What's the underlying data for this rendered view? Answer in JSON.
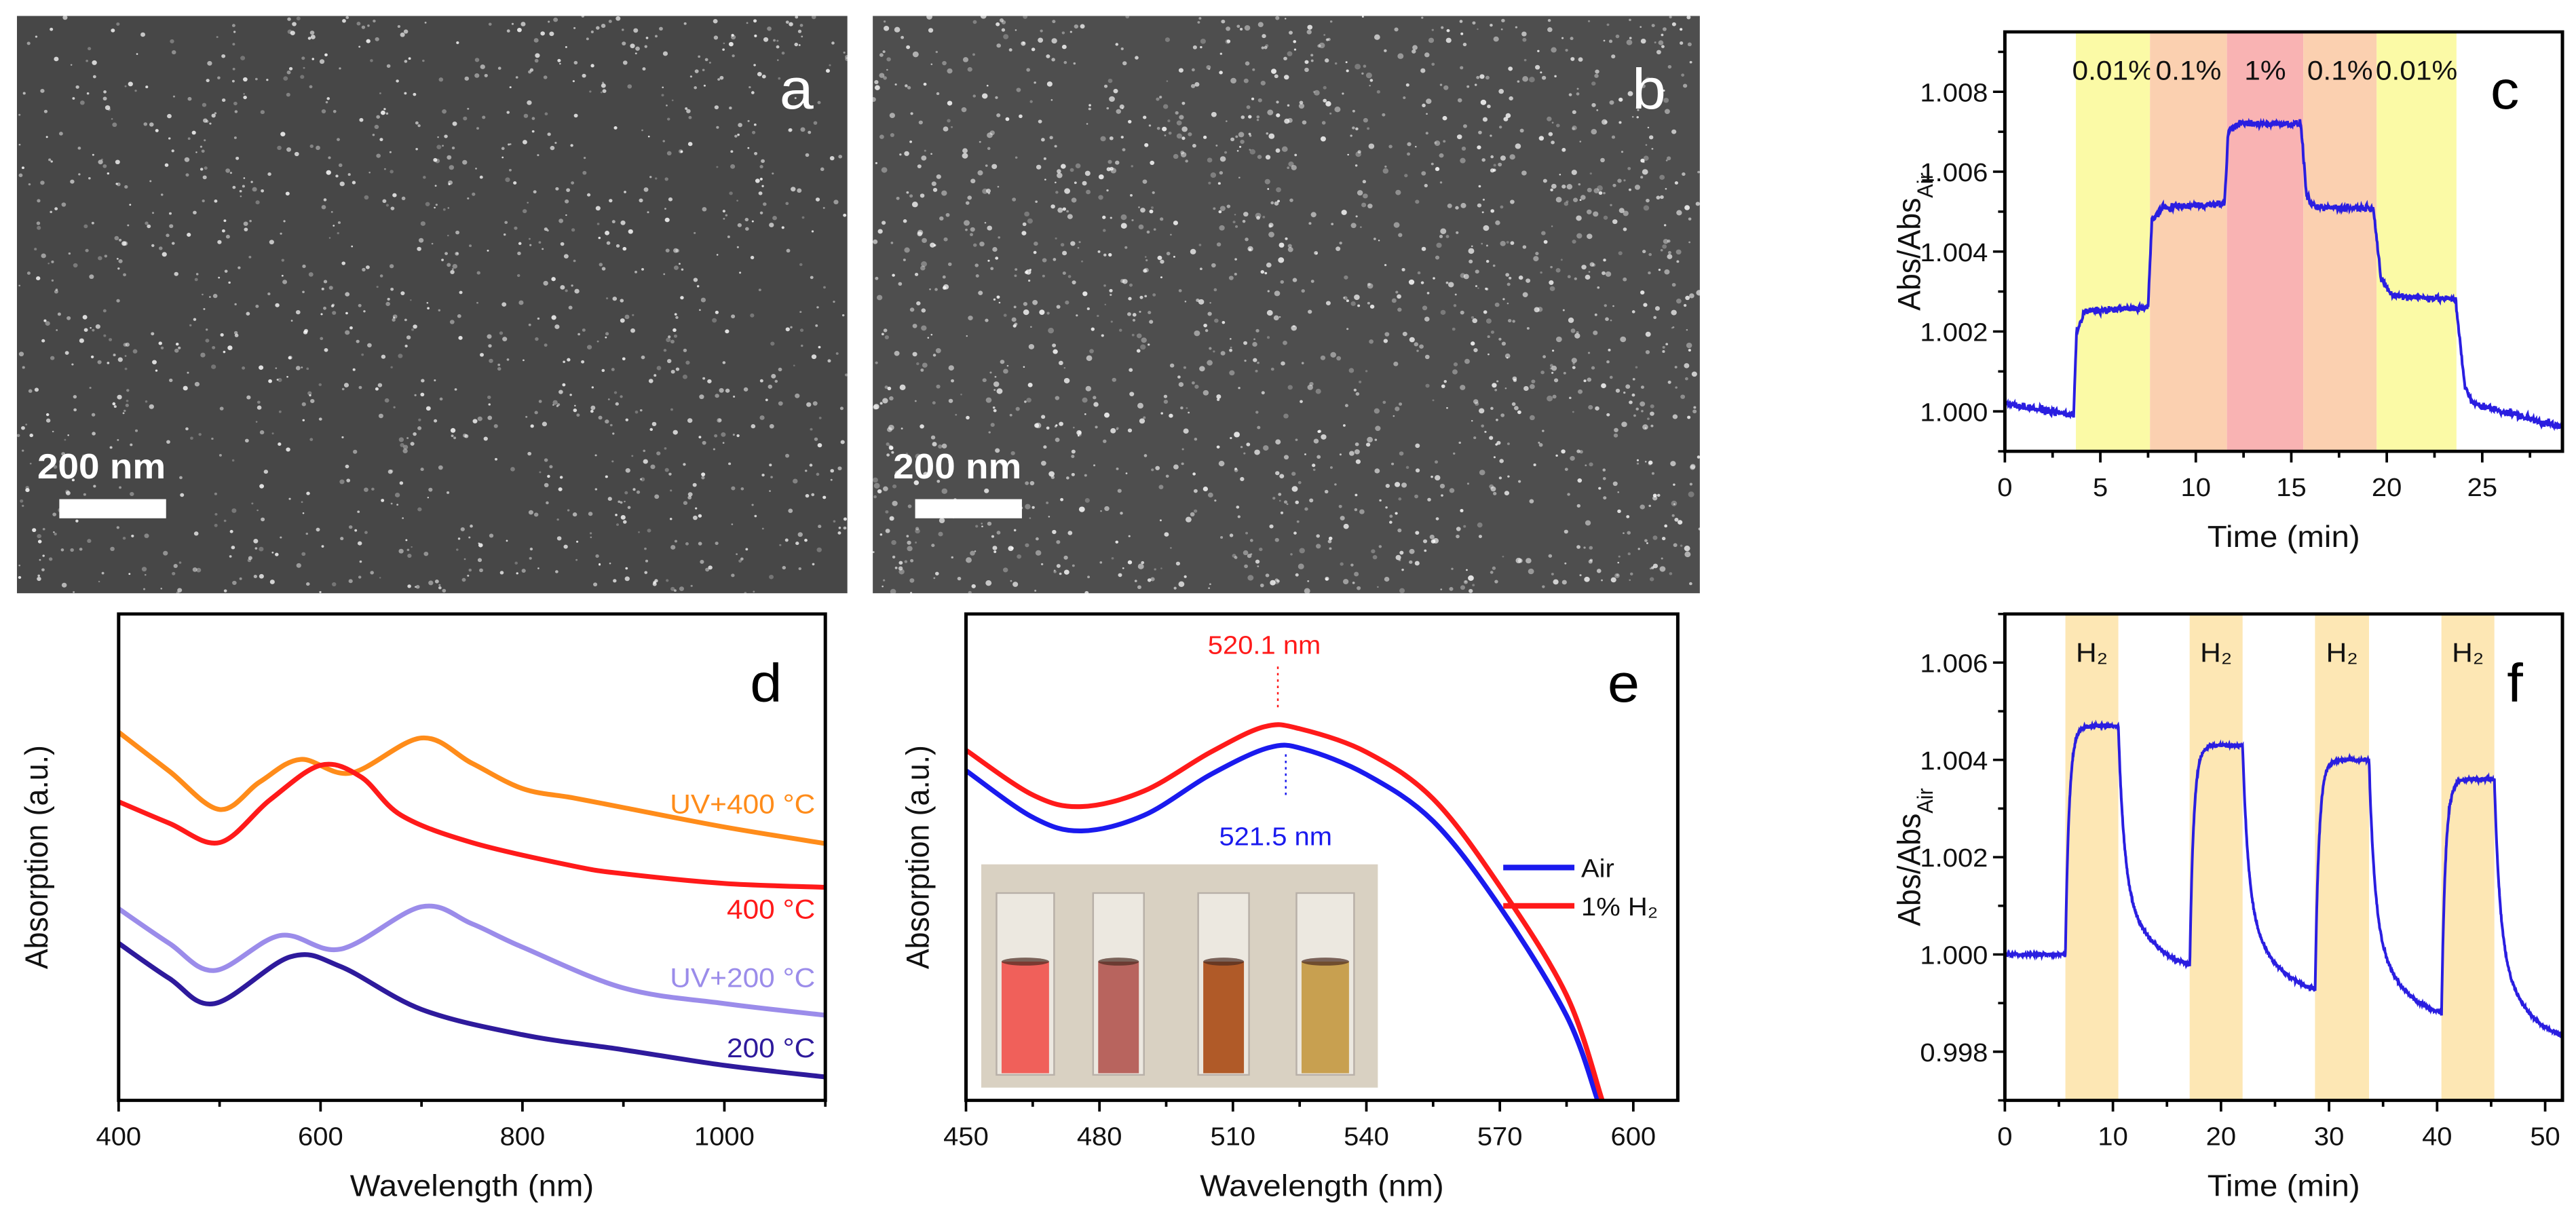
{
  "figure": {
    "panels": [
      {
        "id": "a",
        "label": "a",
        "scale_bar": "200 nm",
        "type": "sem-image"
      },
      {
        "id": "b",
        "label": "b",
        "scale_bar": "200 nm",
        "type": "sem-image"
      }
    ]
  },
  "chart_data": [
    {
      "id": "c",
      "label": "c",
      "type": "line",
      "xlabel": "Time (min)",
      "ylabel": "Abs/Abs",
      "ylabel_sub": "Air",
      "xlim": [
        0,
        29.2
      ],
      "ylim": [
        0.999,
        1.0095
      ],
      "xticks": [
        0,
        5,
        10,
        15,
        20,
        25
      ],
      "xtick_labels": [
        "0",
        "5",
        "10",
        "15",
        "20",
        "25"
      ],
      "yticks": [
        1.0,
        1.002,
        1.004,
        1.006,
        1.008
      ],
      "ytick_labels": [
        "1.000",
        "1.002",
        "1.004",
        "1.006",
        "1.008"
      ],
      "bands": [
        {
          "from": 3.72,
          "to": 7.6,
          "label": "0.01%",
          "color": "#fbfaa6"
        },
        {
          "from": 7.6,
          "to": 11.63,
          "label": "0.1%",
          "color": "#fbd0b0"
        },
        {
          "from": 11.63,
          "to": 15.63,
          "label": "1%",
          "color": "#f9b3b3"
        },
        {
          "from": 15.63,
          "to": 19.47,
          "label": "0.1%",
          "color": "#fbd0b0"
        },
        {
          "from": 19.47,
          "to": 23.65,
          "label": "0.01%",
          "color": "#fbfaa6"
        }
      ],
      "series": [
        {
          "name": "Abs/Abs_Air",
          "color": "#2a1ee0",
          "points": [
            [
              0,
              1.0002
            ],
            [
              3.6,
              0.9999
            ],
            [
              3.75,
              1.002
            ],
            [
              4.2,
              1.0025
            ],
            [
              7.5,
              1.0026
            ],
            [
              7.7,
              1.0048
            ],
            [
              8.3,
              1.0051
            ],
            [
              11.5,
              1.0052
            ],
            [
              11.7,
              1.007
            ],
            [
              12.2,
              1.0072
            ],
            [
              15.5,
              1.0072
            ],
            [
              15.8,
              1.0054
            ],
            [
              16.2,
              1.0051
            ],
            [
              19.3,
              1.0051
            ],
            [
              19.7,
              1.0033
            ],
            [
              20.3,
              1.0029
            ],
            [
              23.6,
              1.0028
            ],
            [
              24.1,
              1.0006
            ],
            [
              24.5,
              1.0002
            ],
            [
              29.2,
              0.9996
            ]
          ]
        }
      ]
    },
    {
      "id": "d",
      "label": "d",
      "type": "line",
      "xlabel": "Wavelength (nm)",
      "ylabel": "Absorption (a.u.)",
      "xlim": [
        400,
        1100
      ],
      "ylim": [
        0,
        1
      ],
      "xticks": [
        400,
        600,
        800,
        1000
      ],
      "xtick_labels": [
        "400",
        "600",
        "800",
        "1000"
      ],
      "series": [
        {
          "name": "UV+400 °C",
          "color": "#ff8c1a",
          "points": [
            [
              400,
              0.757
            ],
            [
              450,
              0.677
            ],
            [
              500,
              0.598
            ],
            [
              540,
              0.655
            ],
            [
              580,
              0.701
            ],
            [
              630,
              0.673
            ],
            [
              700,
              0.745
            ],
            [
              750,
              0.693
            ],
            [
              800,
              0.641
            ],
            [
              850,
              0.622
            ],
            [
              900,
              0.602
            ],
            [
              1000,
              0.562
            ],
            [
              1100,
              0.528
            ]
          ]
        },
        {
          "name": "400 °C",
          "color": "#ff1a1a",
          "points": [
            [
              400,
              0.614
            ],
            [
              450,
              0.57
            ],
            [
              500,
              0.53
            ],
            [
              550,
              0.618
            ],
            [
              600,
              0.689
            ],
            [
              640,
              0.665
            ],
            [
              680,
              0.586
            ],
            [
              750,
              0.53
            ],
            [
              850,
              0.482
            ],
            [
              900,
              0.466
            ],
            [
              1000,
              0.446
            ],
            [
              1100,
              0.438
            ]
          ]
        },
        {
          "name": "UV+200 °C",
          "color": "#9b8cea",
          "points": [
            [
              400,
              0.394
            ],
            [
              450,
              0.323
            ],
            [
              495,
              0.267
            ],
            [
              560,
              0.339
            ],
            [
              620,
              0.311
            ],
            [
              700,
              0.398
            ],
            [
              750,
              0.363
            ],
            [
              800,
              0.315
            ],
            [
              900,
              0.231
            ],
            [
              1000,
              0.199
            ],
            [
              1100,
              0.175
            ]
          ]
        },
        {
          "name": "200 °C",
          "color": "#2e1a9c",
          "points": [
            [
              400,
              0.323
            ],
            [
              450,
              0.251
            ],
            [
              495,
              0.199
            ],
            [
              570,
              0.295
            ],
            [
              620,
              0.275
            ],
            [
              700,
              0.187
            ],
            [
              800,
              0.135
            ],
            [
              900,
              0.104
            ],
            [
              1000,
              0.072
            ],
            [
              1100,
              0.048
            ]
          ]
        }
      ]
    },
    {
      "id": "e",
      "label": "e",
      "type": "line",
      "xlabel": "Wavelength (nm)",
      "ylabel": "Absorption (a.u.)",
      "xlim": [
        450,
        610
      ],
      "ylim": [
        0,
        1
      ],
      "xticks": [
        450,
        480,
        510,
        540,
        570,
        600
      ],
      "xtick_labels": [
        "450",
        "480",
        "510",
        "540",
        "570",
        "600"
      ],
      "annotations": [
        {
          "text": "520.1 nm",
          "x": 520.1,
          "color": "#ff1a1a"
        },
        {
          "text": "521.5 nm",
          "x": 521.5,
          "color": "#1a1aee"
        }
      ],
      "legend": {
        "placement": "right",
        "entries": [
          "Air",
          "1% H₂"
        ]
      },
      "inset": {
        "description_colors": [
          "#f0605a",
          "#b8645e",
          "#b05a28",
          "#c8a050"
        ]
      },
      "series": [
        {
          "name": "Air",
          "color": "#1a1aee",
          "points": [
            [
              450,
              0.678
            ],
            [
              465,
              0.582
            ],
            [
              476,
              0.554
            ],
            [
              490,
              0.586
            ],
            [
              505,
              0.67
            ],
            [
              518,
              0.725
            ],
            [
              526,
              0.722
            ],
            [
              540,
              0.67
            ],
            [
              555,
              0.574
            ],
            [
              570,
              0.398
            ],
            [
              585,
              0.174
            ],
            [
              592,
              0.0
            ]
          ]
        },
        {
          "name": "1% H₂",
          "color": "#ff1a1a",
          "points": [
            [
              450,
              0.72
            ],
            [
              465,
              0.628
            ],
            [
              476,
              0.604
            ],
            [
              490,
              0.636
            ],
            [
              505,
              0.716
            ],
            [
              517,
              0.768
            ],
            [
              525,
              0.764
            ],
            [
              540,
              0.716
            ],
            [
              555,
              0.62
            ],
            [
              570,
              0.44
            ],
            [
              585,
              0.216
            ],
            [
              593,
              0.0
            ]
          ]
        }
      ]
    },
    {
      "id": "f",
      "label": "f",
      "type": "line",
      "xlabel": "Time (min)",
      "ylabel": "Abs/Abs",
      "ylabel_sub": "Air",
      "xlim": [
        0,
        51.6
      ],
      "ylim": [
        0.997,
        1.007
      ],
      "xticks": [
        0,
        10,
        20,
        30,
        40,
        50
      ],
      "xtick_labels": [
        "0",
        "10",
        "20",
        "30",
        "40",
        "50"
      ],
      "yticks": [
        0.998,
        1.0,
        1.002,
        1.004,
        1.006
      ],
      "ytick_labels": [
        "0.998",
        "1.000",
        "1.002",
        "1.004",
        "1.006"
      ],
      "bands": [
        {
          "from": 5.6,
          "to": 10.5,
          "label": "H₂",
          "color": "#fde7b4"
        },
        {
          "from": 17.1,
          "to": 22.0,
          "label": "H₂",
          "color": "#fde7b4"
        },
        {
          "from": 28.7,
          "to": 33.7,
          "label": "H₂",
          "color": "#fde7b4"
        },
        {
          "from": 40.4,
          "to": 45.3,
          "label": "H₂",
          "color": "#fde7b4"
        }
      ],
      "series": [
        {
          "name": "Abs/Abs_Air",
          "color": "#2a1ee0",
          "cycles": [
            {
              "on": 5.6,
              "off": 10.5,
              "base": 1.0,
              "peak": 1.0047,
              "end": 0.9996
            },
            {
              "on": 17.1,
              "off": 22.0,
              "base": 0.9996,
              "peak": 1.0043,
              "end": 0.9991
            },
            {
              "on": 28.7,
              "off": 33.7,
              "base": 0.9991,
              "peak": 1.004,
              "end": 0.9986
            },
            {
              "on": 40.4,
              "off": 45.3,
              "base": 0.9986,
              "peak": 1.0036,
              "end": 0.9981
            }
          ]
        }
      ]
    }
  ]
}
